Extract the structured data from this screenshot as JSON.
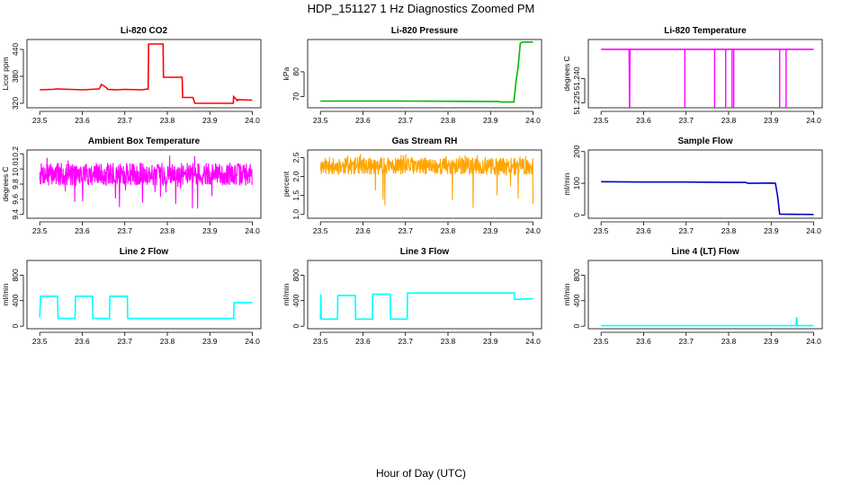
{
  "figure": {
    "title": "HDP_151127  1 Hz Diagnostics Zoomed PM",
    "xlabel": "Hour of Day (UTC)"
  },
  "chart_data": [
    {
      "type": "line",
      "title": "Li-820 CO2",
      "ylabel": "Licor ppm",
      "color": "#ff0000",
      "xlim": [
        23.47,
        24.02
      ],
      "ylim": [
        310,
        462
      ],
      "yticks": [
        320,
        380,
        440
      ],
      "yticklabels": [
        "320",
        "380",
        "440"
      ],
      "xticks": [
        23.5,
        23.6,
        23.7,
        23.8,
        23.9,
        24.0
      ],
      "xticklabels": [
        "23.5",
        "23.6",
        "23.7",
        "23.8",
        "23.9",
        "24.0"
      ],
      "series": [
        {
          "x": [
            23.5,
            23.53,
            23.54,
            23.6,
            23.64,
            23.645,
            23.655,
            23.66,
            23.68,
            23.7,
            23.74,
            23.755,
            23.756,
            23.79,
            23.791,
            23.835,
            23.836,
            23.86,
            23.865,
            23.955,
            23.956,
            23.965,
            23.966,
            24.0
          ],
          "y": [
            350,
            351,
            352,
            350,
            352,
            362,
            356,
            351,
            350,
            351,
            350,
            352,
            452,
            452,
            378,
            378,
            333,
            333,
            320,
            320,
            335,
            326,
            328,
            327
          ]
        }
      ]
    },
    {
      "type": "line",
      "title": "Li-820 Pressure",
      "ylabel": "kPa",
      "color": "#00bb00",
      "xlim": [
        23.47,
        24.02
      ],
      "ylim": [
        65.5,
        93
      ],
      "yticks": [
        70,
        80
      ],
      "yticklabels": [
        "70",
        "80"
      ],
      "xticks": [
        23.5,
        23.6,
        23.7,
        23.8,
        23.9,
        24.0
      ],
      "xticklabels": [
        "23.5",
        "23.6",
        "23.7",
        "23.8",
        "23.9",
        "24.0"
      ],
      "series": [
        {
          "x": [
            23.5,
            23.7,
            23.92,
            23.925,
            23.955,
            23.96,
            23.965,
            23.97,
            23.975,
            24.0
          ],
          "y": [
            68.2,
            68.2,
            68.0,
            67.8,
            67.8,
            76,
            82,
            91.5,
            92,
            92
          ]
        }
      ]
    },
    {
      "type": "line",
      "title": "Li-820 Temperature",
      "ylabel": "degrees C",
      "color": "#ff00ff",
      "xlim": [
        23.47,
        24.02
      ],
      "ylim": [
        51.222,
        51.264
      ],
      "yticks": [
        51.225,
        51.24
      ],
      "yticklabels": [
        "51.225",
        "51.240"
      ],
      "xticks": [
        23.5,
        23.6,
        23.7,
        23.8,
        23.9,
        24.0
      ],
      "xticklabels": [
        "23.5",
        "23.6",
        "23.7",
        "23.8",
        "23.9",
        "24.0"
      ],
      "series": [
        {
          "x": [
            23.5,
            23.566,
            23.567,
            23.568,
            24.0
          ],
          "y": [
            51.258,
            51.258,
            51.222,
            51.258,
            51.258
          ]
        }
      ],
      "dips": [
        23.697,
        23.767,
        23.793,
        23.808,
        23.812,
        23.92,
        23.935
      ]
    },
    {
      "type": "line",
      "title": "Ambient Box Temperature",
      "ylabel": "degrees C",
      "color": "#ff00ff",
      "xlim": [
        23.47,
        24.02
      ],
      "ylim": [
        9.35,
        10.25
      ],
      "yticks": [
        9.4,
        9.6,
        9.8,
        10.0,
        10.2
      ],
      "yticklabels": [
        "9.4",
        "9.6",
        "9.8",
        "10.0",
        "10.2"
      ],
      "xticks": [
        23.5,
        23.6,
        23.7,
        23.8,
        23.9,
        24.0
      ],
      "xticklabels": [
        "23.5",
        "23.6",
        "23.7",
        "23.8",
        "23.9",
        "24.0"
      ],
      "noise": {
        "x_start": 23.5,
        "x_end": 24.0,
        "low": 9.78,
        "high": 10.08,
        "spike_low": 9.42,
        "spike_high": 10.22,
        "seed": 7
      }
    },
    {
      "type": "line",
      "title": "Gas Stream RH",
      "ylabel": "percent",
      "color": "#ffa500",
      "xlim": [
        23.47,
        24.02
      ],
      "ylim": [
        0.9,
        2.7
      ],
      "yticks": [
        1.0,
        1.5,
        2.0,
        2.5
      ],
      "yticklabels": [
        "1.0",
        "1.5",
        "2.0",
        "2.5"
      ],
      "xticks": [
        23.5,
        23.6,
        23.7,
        23.8,
        23.9,
        24.0
      ],
      "xticklabels": [
        "23.5",
        "23.6",
        "23.7",
        "23.8",
        "23.9",
        "24.0"
      ],
      "noise": {
        "x_start": 23.5,
        "x_end": 24.0,
        "low": 2.05,
        "high": 2.5,
        "spike_low": 1.0,
        "spike_high": 2.6,
        "seed": 11
      }
    },
    {
      "type": "line",
      "title": "Sample Flow",
      "ylabel": "ml/min",
      "color": "#0000cc",
      "xlim": [
        23.47,
        24.02
      ],
      "ylim": [
        -10,
        205
      ],
      "yticks": [
        0,
        100,
        200
      ],
      "yticklabels": [
        "0",
        "100",
        "200"
      ],
      "xticks": [
        23.5,
        23.6,
        23.7,
        23.8,
        23.9,
        24.0
      ],
      "xticklabels": [
        "23.5",
        "23.6",
        "23.7",
        "23.8",
        "23.9",
        "24.0"
      ],
      "series": [
        {
          "x": [
            23.5,
            23.6,
            23.7,
            23.8,
            23.84,
            23.845,
            23.905,
            23.91,
            23.915,
            23.92,
            24.0
          ],
          "y": [
            105,
            104,
            104,
            103,
            103,
            100,
            101,
            100,
            60,
            3,
            2
          ]
        }
      ]
    },
    {
      "type": "line",
      "title": "Line 2 Flow",
      "ylabel": "ml/min",
      "color": "#00ffff",
      "xlim": [
        23.47,
        24.02
      ],
      "ylim": [
        -40,
        1030
      ],
      "yticks": [
        0,
        400,
        800
      ],
      "yticklabels": [
        "0",
        "400",
        "800"
      ],
      "xticks": [
        23.5,
        23.6,
        23.7,
        23.8,
        23.9,
        24.0
      ],
      "xticklabels": [
        "23.5",
        "23.6",
        "23.7",
        "23.8",
        "23.9",
        "24.0"
      ],
      "series": [
        {
          "x": [
            23.5,
            23.502,
            23.542,
            23.543,
            23.583,
            23.584,
            23.624,
            23.625,
            23.664,
            23.665,
            23.706,
            23.707,
            23.956,
            23.957,
            24.0
          ],
          "y": [
            140,
            470,
            470,
            120,
            120,
            470,
            470,
            120,
            120,
            470,
            470,
            120,
            120,
            370,
            370
          ]
        }
      ]
    },
    {
      "type": "line",
      "title": "Line 3 Flow",
      "ylabel": "ml/min",
      "color": "#00ffff",
      "xlim": [
        23.47,
        24.02
      ],
      "ylim": [
        -40,
        1030
      ],
      "yticks": [
        0,
        400,
        800
      ],
      "yticklabels": [
        "0",
        "400",
        "800"
      ],
      "xticks": [
        23.5,
        23.6,
        23.7,
        23.8,
        23.9,
        24.0
      ],
      "xticklabels": [
        "23.5",
        "23.6",
        "23.7",
        "23.8",
        "23.9",
        "24.0"
      ],
      "series": [
        {
          "x": [
            23.5,
            23.501,
            23.502,
            23.503,
            23.54,
            23.541,
            23.582,
            23.583,
            23.622,
            23.623,
            23.664,
            23.665,
            23.704,
            23.705,
            23.8,
            23.9,
            23.955,
            23.957,
            24.0
          ],
          "y": [
            110,
            500,
            110,
            110,
            110,
            480,
            480,
            110,
            110,
            500,
            500,
            110,
            110,
            520,
            520,
            520,
            520,
            420,
            430
          ]
        }
      ]
    },
    {
      "type": "line",
      "title": "Line 4 (LT) Flow",
      "ylabel": "ml/min",
      "color": "#00ffff",
      "xlim": [
        23.47,
        24.02
      ],
      "ylim": [
        -40,
        1030
      ],
      "yticks": [
        0,
        400,
        800
      ],
      "yticklabels": [
        "0",
        "400",
        "800"
      ],
      "xticks": [
        23.5,
        23.6,
        23.7,
        23.8,
        23.9,
        24.0
      ],
      "xticklabels": [
        "23.5",
        "23.6",
        "23.7",
        "23.8",
        "23.9",
        "24.0"
      ],
      "series": [
        {
          "x": [
            23.5,
            23.7,
            23.9,
            23.958,
            23.96,
            23.962,
            23.964,
            24.0
          ],
          "y": [
            8,
            8,
            8,
            8,
            140,
            10,
            8,
            8
          ]
        }
      ]
    }
  ]
}
